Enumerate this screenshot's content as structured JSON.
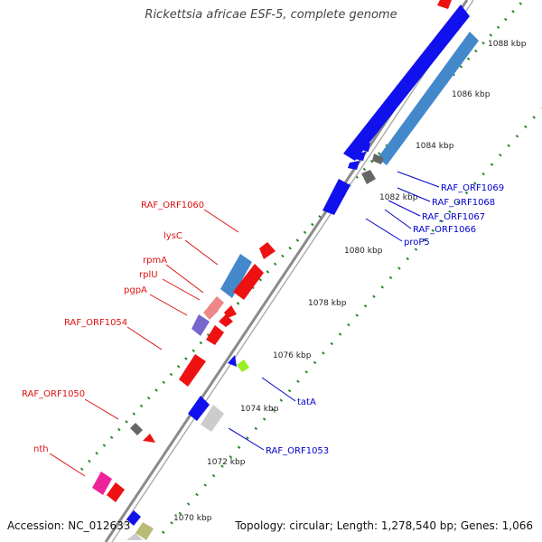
{
  "title": "Rickettsia africae ESF-5, complete genome",
  "accession": "Accession: NC_012633",
  "summary": "Topology: circular; Length: 1,278,540 bp; Genes: 1,066",
  "scale_labels": [
    "1088 kbp",
    "1086 kbp",
    "1084 kbp",
    "1082 kbp",
    "1080 kbp",
    "1078 kbp",
    "1076 kbp",
    "1074 kbp",
    "1072 kbp",
    "1070 kbp"
  ],
  "left_labels": [
    "RAF_ORF1060",
    "lysC",
    "rpmA",
    "rplU",
    "pgpA",
    "RAF_ORF1054",
    "RAF_ORF1050",
    "nth"
  ],
  "right_labels": [
    "RAF_ORF1069",
    "RAF_ORF1068",
    "RAF_ORF1067",
    "RAF_ORF1066",
    "proP5",
    "tatA",
    "RAF_ORF1053"
  ],
  "colors": {
    "backbone": "#8a8a8a",
    "dots": "#2a8a2a",
    "left_label": "#dd1111",
    "right_label": "#0000cc",
    "gene_red": "#ee1111",
    "gene_blue": "#1111ee",
    "gene_steel": "#4488cc",
    "gene_gray": "#666666",
    "gene_pink": "#ee8888",
    "gene_purple": "#7766cc",
    "gene_lime": "#99ee22",
    "gene_silver": "#cccccc",
    "gene_magenta": "#ee2299",
    "gene_khaki": "#bbbb77"
  }
}
